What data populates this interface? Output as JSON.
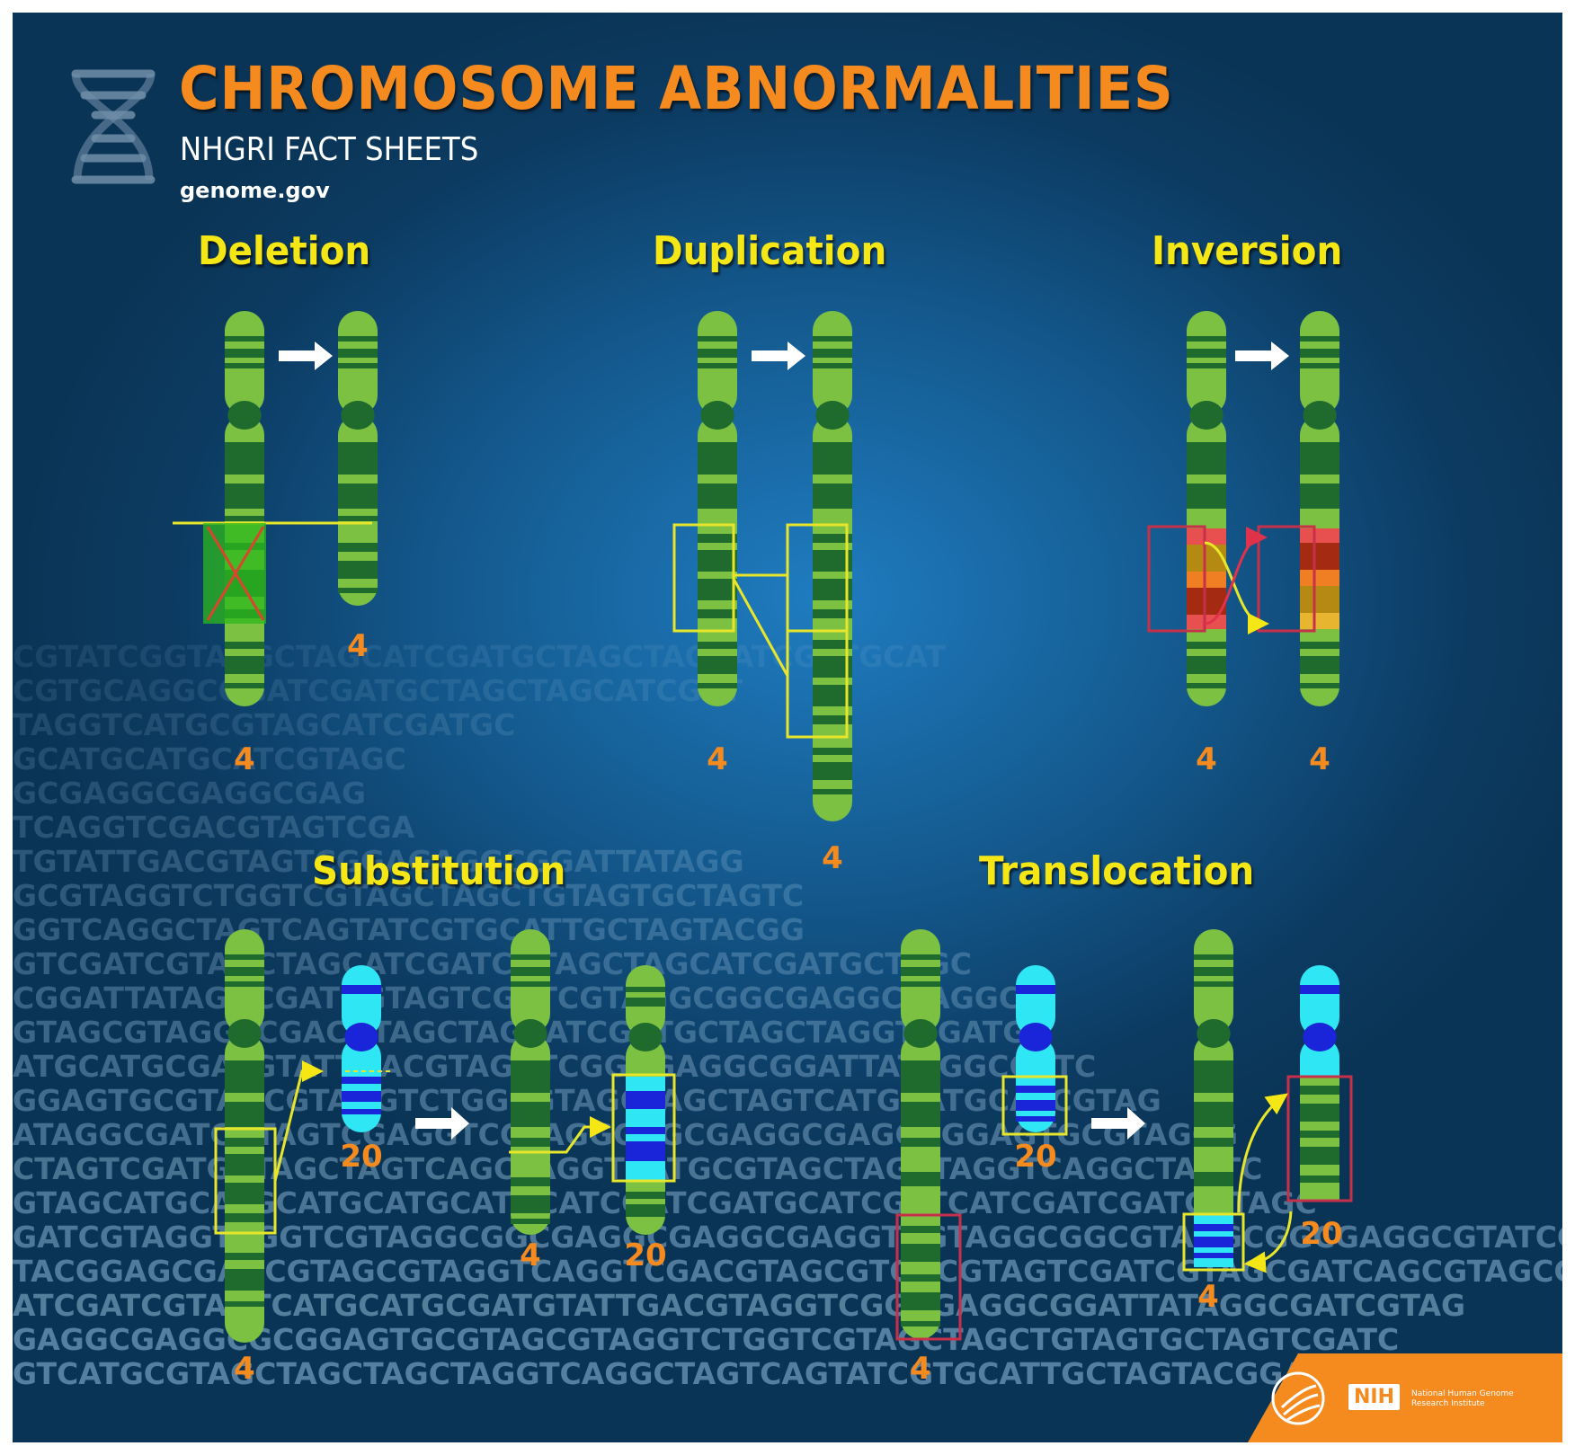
{
  "header": {
    "title": "CHROMOSOME ABNORMALITIES",
    "subtitle": "NHGRI FACT SHEETS",
    "website": "genome.gov"
  },
  "panels": {
    "deletion": {
      "title": "Deletion",
      "labels": [
        "4",
        "4"
      ]
    },
    "duplication": {
      "title": "Duplication",
      "labels": [
        "4",
        "4"
      ]
    },
    "inversion": {
      "title": "Inversion",
      "labels": [
        "4",
        "4"
      ]
    },
    "substitution": {
      "title": "Substitution",
      "labels": [
        "20",
        "4",
        "20",
        "4"
      ]
    },
    "translocation": {
      "title": "Translocation",
      "labels": [
        "4",
        "20",
        "20",
        "4"
      ]
    }
  },
  "footer": {
    "nih_badge": "NIH",
    "institute_name": "National Human Genome Research Institute"
  },
  "background_dna": [
    "CGTATCGGTACGCTAGCATCGATGCTAGCTAGCATCGATGCAT",
    "CGTGCAGGCGGATCGATGCTAGCTAGCATCGAT",
    "TAGGTCATGCGTAGCATCGATGC",
    "GCATGCATGCATCGTAGC",
    "GCGAGGCGAGGCGAG",
    "TCAGGTCGACGTAGTCGA",
    "TGTATTGACGTAGTCGGAGAGGCGGATTATAGG",
    "GCGTAGGTCTGGTCGTAGCTAGCTGTAGTGCTAGTC",
    "GGTCAGGCTAGTCAGTATCGTGCATTGCTAGTACGG",
    "GTCGATCGTAGCTAGCATCGATCGTAGCTAGCATCGATGCTAGC",
    "CGGATTATAGGCGATCGTAGTCGATCGTAGGCGGCGAGGCGAGGC",
    "GTAGCGTAGGTCGACGTAGCTAGCATCGATGCTAGCTAGGTCGATGC",
    "ATGCATGCGATGTATTGACGTAGGTCGGAGAGGCGGATTATAGGCGATC",
    "GGAGTGCGTAGCGTAGGTCTGGCGTAGCTAGCTAGTCATGCATGCATCGTAG",
    "ATAGGCGATCGTAGTCGAGGTCGTAGGCGGCGAGGCGAGGCGGAGTGCGTAGCG",
    "CTAGTCGATGCTAGCTAGTCAGCTAGGTCATGCGTAGCTAGCTAGGTCAGGCTAGTC",
    "GTAGCATGCATGCATGCATGCATGCATCGATCGATGCATCGATCATCGATCGATCGTAGC",
    "GATCGTAGGTCGGTCGTAGGCGGCGAGGCGAGGCGAGGTCGTAGGCGGCGTAGGCGGCGAGGCGTATCGTCGC",
    "TACGGAGCGAGCGTAGCGTAGGTCAGGTCGACGTAGCGTGACGTAGTCGATCGTAGCGATCAGCGTAGCGTACGT",
    "ATCGATCGTAGTCATGCATGCGATGTATTGACGTAGGTCGGAGAGGCGGATTATAGGCGATCGTAG",
    "GAGGCGAGGCGCGGAGTGCGTAGCGTAGGTCTGGTCGTAGCTAGCTGTAGTGCTAGTCGATC",
    "GTCATGCGTAGCTAGCTAGCTAGGTCAGGCTAGTCAGTATCGTGCATTGCTAGTACGGAG"
  ]
}
